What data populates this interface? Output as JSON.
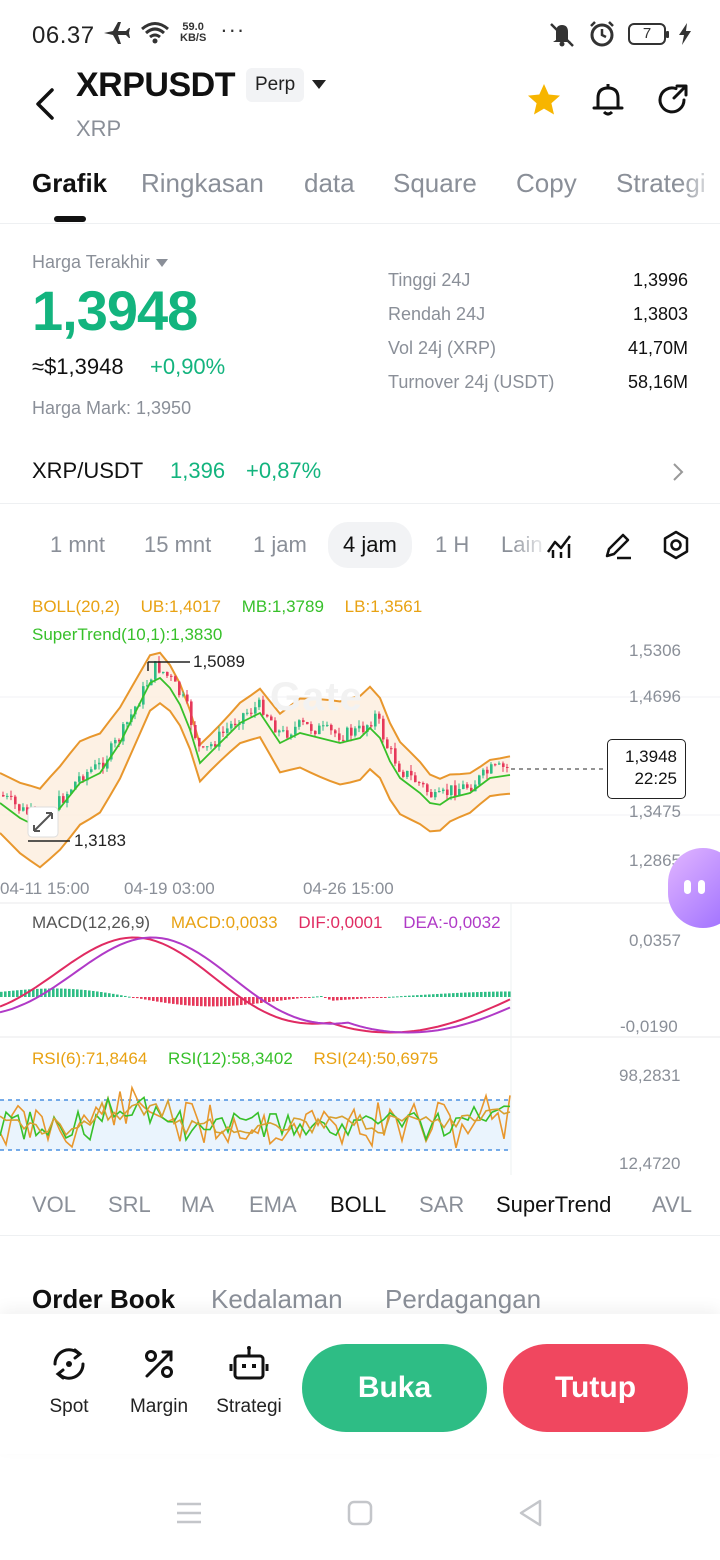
{
  "status_bar": {
    "time": "06.37",
    "speed_value": "59.0",
    "speed_unit": "KB/S",
    "more": "···",
    "battery": "7"
  },
  "header": {
    "pair": "XRPUSDT",
    "badge": "Perp",
    "subtitle": "XRP",
    "star_color": "#f7b500"
  },
  "tabs": [
    {
      "label": "Grafik",
      "active": true
    },
    {
      "label": "Ringkasan"
    },
    {
      "label": "data"
    },
    {
      "label": "Square"
    },
    {
      "label": "Copy"
    },
    {
      "label": "Strategi"
    }
  ],
  "price": {
    "last_label": "Harga Terakhir",
    "last": "1,3948",
    "usd": "≈$1,3948",
    "change": "+0,90%",
    "mark": "Harga Mark: 1,3950",
    "up_color": "#13b47e"
  },
  "stats": [
    {
      "label": "Tinggi 24J",
      "value": "1,3996"
    },
    {
      "label": "Rendah 24J",
      "value": "1,3803"
    },
    {
      "label": "Vol 24j (XRP)",
      "value": "41,70M"
    },
    {
      "label": "Turnover 24j (USDT)",
      "value": "58,16M"
    }
  ],
  "spot": {
    "pair": "XRP/USDT",
    "price": "1,396",
    "change": "+0,87%"
  },
  "intervals": [
    {
      "label": "1 mnt"
    },
    {
      "label": "15 mnt"
    },
    {
      "label": "1 jam"
    },
    {
      "label": "4 jam",
      "active": true
    },
    {
      "label": "1 H"
    },
    {
      "label": "Lain"
    }
  ],
  "chart": {
    "boll": {
      "name": "BOLL(20,2)",
      "ub": "UB:1,4017",
      "mb": "MB:1,3789",
      "lb": "LB:1,3561"
    },
    "supertrend": "SuperTrend(10,1):1,3830",
    "watermark": "Gate",
    "high_marker": "1,5089",
    "low_marker": "1,3183",
    "price_tag_value": "1,3948",
    "price_tag_countdown": "22:25",
    "y_labels": [
      "1,5306",
      "1,4696",
      "1,3475",
      "1,2865"
    ],
    "x_labels": [
      "04-11 15:00",
      "04-19 03:00",
      "04-26 15:00"
    ],
    "macd": {
      "name": "MACD(12,26,9)",
      "macd": "MACD:0,0033",
      "dif": "DIF:0,0001",
      "dea": "DEA:-0,0032",
      "max": "0,0357",
      "min": "-0,0190"
    },
    "rsi": {
      "rsi6": "RSI(6):71,8464",
      "rsi12": "RSI(12):58,3402",
      "rsi24": "RSI(24):50,6975",
      "max": "98,2831",
      "min": "12,4720"
    },
    "colors": {
      "up": "#2ebd85",
      "down": "#e6385a",
      "boll": "#e8972d",
      "supertrend": "#37c02a"
    }
  },
  "indicator_tabs": [
    {
      "label": "VOL"
    },
    {
      "label": "SRL"
    },
    {
      "label": "MA"
    },
    {
      "label": "EMA"
    },
    {
      "label": "BOLL",
      "active": true
    },
    {
      "label": "SAR"
    },
    {
      "label": "SuperTrend",
      "active": true
    },
    {
      "label": "AVL"
    }
  ],
  "orderbook_tabs": [
    {
      "label": "Order Book",
      "active": true
    },
    {
      "label": "Kedalaman"
    },
    {
      "label": "Perdagangan"
    }
  ],
  "actions": {
    "spot": "Spot",
    "margin": "Margin",
    "strategy": "Strategi",
    "buy": "Buka",
    "sell": "Tutup"
  }
}
